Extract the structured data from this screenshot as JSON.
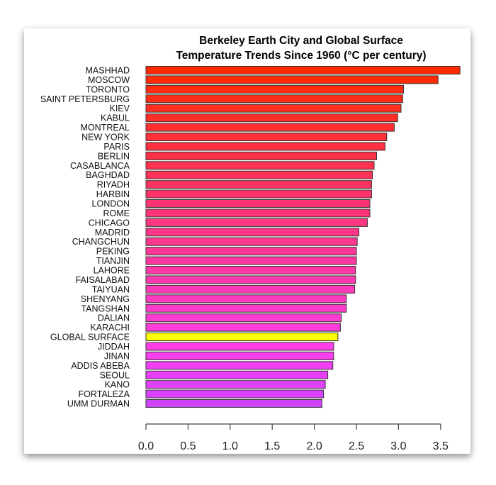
{
  "chart_data": {
    "type": "bar",
    "orientation": "horizontal",
    "title": [
      "Berkeley Earth City and Global Surface",
      "Temperature Trends Since 1960 (°C per century)"
    ],
    "xlabel": "",
    "ylabel": "",
    "xlim": [
      0,
      3.75
    ],
    "xticks": [
      0.0,
      0.5,
      1.0,
      1.5,
      2.0,
      2.5,
      3.0,
      3.5
    ],
    "xtick_labels": [
      "0.0",
      "0.5",
      "1.0",
      "1.5",
      "2.0",
      "2.5",
      "3.0",
      "3.5"
    ],
    "grid": false,
    "categories": [
      "MASHHAD",
      "MOSCOW",
      "TORONTO",
      "SAINT PETERSBURG",
      "KIEV",
      "KABUL",
      "MONTREAL",
      "NEW YORK",
      "PARIS",
      "BERLIN",
      "CASABLANCA",
      "BAGHDAD",
      "RIYADH",
      "HARBIN",
      "LONDON",
      "ROME",
      "CHICAGO",
      "MADRID",
      "CHANGCHUN",
      "PEKING",
      "TIANJIN",
      "LAHORE",
      "FAISALABAD",
      "TAIYUAN",
      "SHENYANG",
      "TANGSHAN",
      "DALIAN",
      "KARACHI",
      "GLOBAL SURFACE",
      "JIDDAH",
      "JINAN",
      "ADDIS ABEBA",
      "SEOUL",
      "KANO",
      "FORTALEZA",
      "UMM DURMAN"
    ],
    "values": [
      3.73,
      3.47,
      3.06,
      3.05,
      3.03,
      2.99,
      2.95,
      2.86,
      2.84,
      2.74,
      2.71,
      2.69,
      2.68,
      2.68,
      2.66,
      2.66,
      2.63,
      2.53,
      2.51,
      2.5,
      2.5,
      2.49,
      2.49,
      2.48,
      2.38,
      2.38,
      2.32,
      2.31,
      2.28,
      2.23,
      2.23,
      2.22,
      2.16,
      2.13,
      2.11,
      2.09
    ],
    "colors": [
      "#ff2a00",
      "#ff2c08",
      "#ff2c10",
      "#ff2d18",
      "#ff2e20",
      "#ff2e28",
      "#ff2f30",
      "#ff3038",
      "#ff3040",
      "#ff3148",
      "#ff3250",
      "#ff3258",
      "#ff3360",
      "#ff3468",
      "#ff3470",
      "#ff3578",
      "#ff3680",
      "#ff3688",
      "#ff3790",
      "#ff3898",
      "#ff38a0",
      "#ff39a8",
      "#ff3ab0",
      "#ff3ab8",
      "#ff3bc0",
      "#ff3cc8",
      "#ff3cd0",
      "#ff3dd8",
      "#ffff00",
      "#ff3ee8",
      "#f83ff0",
      "#f040f4",
      "#e840f8",
      "#e041fa",
      "#d842fc",
      "#cf44ff"
    ]
  }
}
